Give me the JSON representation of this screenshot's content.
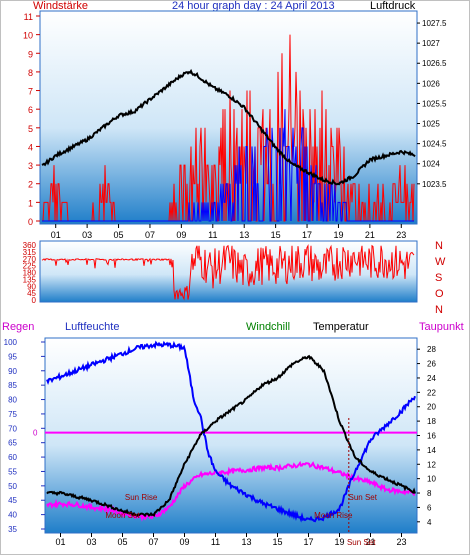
{
  "header": {
    "left_label": "Windstärke",
    "center_title": "24 hour graph day : 24 April 2013",
    "right_label": "Luftdruck"
  },
  "direction_labels": [
    "N",
    "W",
    "S",
    "O",
    "N"
  ],
  "bottom_header": {
    "regen": "Regen",
    "luftfeuchte": "Luftfeuchte",
    "windchill": "Windchill",
    "temperatur": "Temperatur",
    "taupunkt": "Taupunkt"
  },
  "colors": {
    "frame": "#2f6fc7",
    "sky_top": "#ffffff",
    "sky_bottom": "#1a78c8",
    "wind": "#ff0000",
    "gust": "#0000ff",
    "pressure": "#000000",
    "humidity": "#0000ff",
    "temperature": "#000000",
    "dewpoint": "#ff00ff",
    "windchill": "#008000",
    "label_red": "#d00000",
    "sun_moon": "#a00000"
  },
  "chart_data": [
    {
      "type": "line",
      "title": "24 hour graph day : 24 April 2013",
      "x_ticks": [
        "01",
        "03",
        "05",
        "07",
        "09",
        "11",
        "13",
        "15",
        "17",
        "19",
        "21",
        "23"
      ],
      "left_axis": {
        "label": "Windstärke",
        "ticks": [
          "0",
          "1",
          "2",
          "3",
          "4",
          "5",
          "6",
          "7",
          "8",
          "9",
          "10",
          "11"
        ],
        "ylim": [
          0,
          11
        ]
      },
      "right_axis": {
        "label": "Luftdruck",
        "ticks": [
          "1023.5",
          "1024",
          "1024.5",
          "1025",
          "1025.5",
          "1026",
          "1026.5",
          "1027",
          "1027.5"
        ],
        "ylim": [
          1022.5,
          1027.8
        ]
      },
      "series": [
        {
          "name": "Luftdruck",
          "axis": "right",
          "x": [
            0,
            1,
            2,
            3,
            4,
            5,
            6,
            7,
            8,
            9,
            9.5,
            10,
            11,
            12,
            13,
            14,
            15,
            16,
            17,
            18,
            19,
            20,
            21,
            22,
            23,
            24
          ],
          "values": [
            1023.9,
            1024.2,
            1024.4,
            1024.6,
            1024.9,
            1025.2,
            1025.3,
            1025.6,
            1025.9,
            1026.2,
            1026.3,
            1026.2,
            1025.9,
            1025.7,
            1025.4,
            1024.9,
            1024.4,
            1024.0,
            1023.8,
            1023.6,
            1023.5,
            1023.7,
            1024.1,
            1024.2,
            1024.3,
            1024.2
          ]
        },
        {
          "name": "Windstärke",
          "axis": "left",
          "x": [
            0,
            1,
            2,
            3,
            4,
            5,
            6,
            7,
            8,
            9,
            10,
            11,
            12,
            13,
            14,
            15,
            16,
            17,
            18,
            19,
            20,
            21,
            22,
            23,
            24
          ],
          "values": [
            0,
            2,
            0,
            0,
            2,
            0,
            0,
            0,
            0,
            2,
            3,
            3,
            4,
            4,
            5,
            5,
            6,
            5,
            4,
            3,
            2,
            0,
            2,
            2,
            1
          ]
        },
        {
          "name": "Böen",
          "axis": "left",
          "x": [
            0,
            1,
            2,
            3,
            4,
            5,
            6,
            7,
            8,
            9,
            10,
            11,
            12,
            13,
            14,
            15,
            16,
            17,
            18,
            19,
            20,
            21,
            22,
            23,
            24
          ],
          "values": [
            0,
            0,
            0,
            0,
            0,
            0,
            0,
            0,
            0,
            0,
            1,
            1,
            2,
            3,
            3,
            4,
            4,
            3,
            2,
            1,
            0,
            0,
            0,
            0,
            0
          ]
        }
      ]
    },
    {
      "type": "scatter",
      "x_ticks": [
        "01",
        "03",
        "05",
        "07",
        "09",
        "11",
        "13",
        "15",
        "17",
        "19",
        "21",
        "23"
      ],
      "left_axis": {
        "ticks": [
          "0",
          "45",
          "90",
          "135",
          "180",
          "225",
          "270",
          "315",
          "360"
        ],
        "ylim": [
          0,
          360
        ]
      },
      "series": [
        {
          "name": "Windrichtung",
          "x": [
            0,
            1,
            2,
            3,
            4,
            5,
            6,
            7,
            8,
            9,
            10,
            11,
            12,
            13,
            14,
            15,
            16,
            17,
            18,
            19,
            20,
            21,
            22,
            23,
            24
          ],
          "values": [
            270,
            250,
            270,
            240,
            270,
            260,
            270,
            270,
            270,
            120,
            280,
            200,
            260,
            180,
            230,
            220,
            240,
            260,
            200,
            260,
            280,
            250,
            270,
            240,
            220
          ]
        }
      ]
    },
    {
      "type": "line",
      "x_ticks": [
        "01",
        "03",
        "05",
        "07",
        "09",
        "11",
        "13",
        "15",
        "17",
        "19",
        "21",
        "23"
      ],
      "left_axis": {
        "label": "Luftfeuchte",
        "ticks": [
          "35",
          "40",
          "45",
          "50",
          "55",
          "60",
          "65",
          "70",
          "75",
          "80",
          "85",
          "90",
          "95",
          "100"
        ],
        "ylim": [
          35,
          100
        ]
      },
      "right_axis": {
        "label": "Temperatur",
        "ticks": [
          "4",
          "6",
          "8",
          "10",
          "12",
          "14",
          "16",
          "18",
          "20",
          "22",
          "24",
          "26",
          "28"
        ],
        "ylim": [
          3,
          29
        ]
      },
      "regen_axis": {
        "label": "Regen",
        "ticks": [
          "0"
        ]
      },
      "series": [
        {
          "name": "Luftfeuchte",
          "axis": "left",
          "x": [
            0,
            1,
            2,
            3,
            4,
            5,
            6,
            7,
            8,
            9,
            9.6,
            10,
            10.5,
            11,
            12,
            13,
            14,
            15,
            16,
            17,
            18,
            19,
            20,
            21,
            22,
            23,
            24
          ],
          "values": [
            86,
            88,
            90,
            92,
            94,
            96,
            98,
            99,
            99,
            98,
            80,
            75,
            62,
            55,
            50,
            47,
            44,
            42,
            40,
            38,
            39,
            42,
            55,
            66,
            71,
            76,
            82
          ]
        },
        {
          "name": "Temperatur",
          "axis": "right",
          "x": [
            0,
            1,
            2,
            3,
            4,
            5,
            6,
            7,
            8,
            9,
            10,
            11,
            12,
            13,
            14,
            15,
            16,
            17,
            18,
            19,
            20,
            21,
            22,
            23,
            24
          ],
          "values": [
            8,
            8,
            7.5,
            7,
            6.3,
            5.5,
            5.0,
            5.0,
            7,
            12,
            16,
            18,
            19.5,
            21,
            23,
            24,
            26,
            27,
            25,
            18,
            13,
            11,
            10,
            9,
            8
          ]
        },
        {
          "name": "Taupunkt",
          "axis": "right",
          "x": [
            0,
            1,
            2,
            3,
            4,
            5,
            6,
            7,
            8,
            9,
            10,
            11,
            12,
            13,
            14,
            15,
            16,
            17,
            18,
            19,
            20,
            21,
            22,
            23,
            24
          ],
          "values": [
            6.3,
            6.5,
            6.4,
            6.0,
            5.8,
            5.2,
            4.8,
            4.6,
            6.0,
            9.0,
            10.5,
            10.8,
            11.0,
            11.2,
            11.5,
            11.5,
            11.8,
            12.0,
            11.5,
            10.8,
            10.0,
            9.5,
            8.5,
            8.2,
            8.0
          ]
        },
        {
          "name": "Regen",
          "axis": "regen",
          "x": [
            0,
            24
          ],
          "values": [
            0,
            0
          ]
        }
      ],
      "annotations": [
        {
          "text": "Sun Rise",
          "x": 6.2
        },
        {
          "text": "Moon Set",
          "x": 5.0
        },
        {
          "text": "Sun Set",
          "x": 20.5
        },
        {
          "text": "Moon Rise",
          "x": 18.6
        },
        {
          "text": "Sun Set",
          "x": 20.4
        }
      ]
    }
  ]
}
